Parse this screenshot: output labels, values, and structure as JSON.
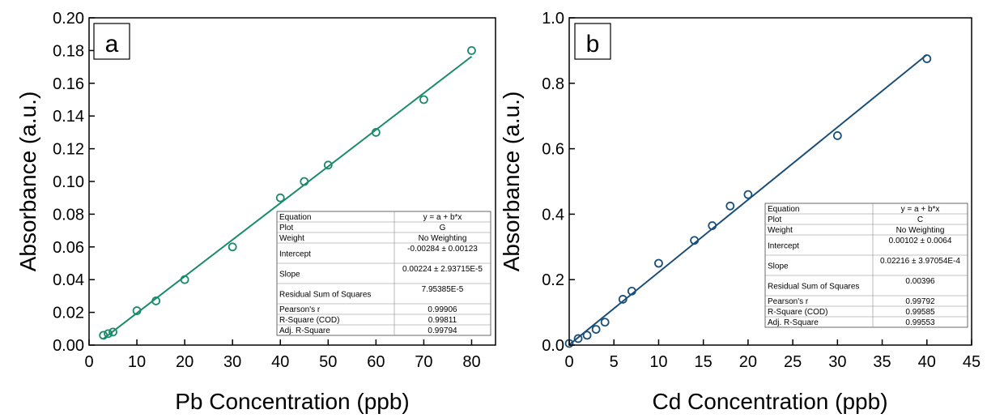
{
  "chart_data": [
    {
      "type": "scatter",
      "panel_label": "a",
      "xlabel": "Pb Concentration (ppb)",
      "ylabel": "Absorbance (a.u.)",
      "xlim": [
        0,
        85
      ],
      "ylim": [
        0,
        0.2
      ],
      "xticks": [
        0,
        10,
        20,
        30,
        40,
        50,
        60,
        70,
        80
      ],
      "yticks": [
        0.0,
        0.02,
        0.04,
        0.06,
        0.08,
        0.1,
        0.12,
        0.14,
        0.16,
        0.18,
        0.2
      ],
      "xtick_labels": [
        "0",
        "10",
        "20",
        "30",
        "40",
        "50",
        "60",
        "70",
        "80"
      ],
      "ytick_labels": [
        "0.00",
        "0.02",
        "0.04",
        "0.06",
        "0.08",
        "0.10",
        "0.12",
        "0.14",
        "0.16",
        "0.18",
        "0.20"
      ],
      "color": "#1a8a6c",
      "points": [
        {
          "x": 3,
          "y": 0.006
        },
        {
          "x": 4,
          "y": 0.007
        },
        {
          "x": 5,
          "y": 0.008
        },
        {
          "x": 10,
          "y": 0.021
        },
        {
          "x": 14,
          "y": 0.027
        },
        {
          "x": 20,
          "y": 0.04
        },
        {
          "x": 30,
          "y": 0.06
        },
        {
          "x": 40,
          "y": 0.09
        },
        {
          "x": 45,
          "y": 0.1
        },
        {
          "x": 50,
          "y": 0.11
        },
        {
          "x": 60,
          "y": 0.13
        },
        {
          "x": 70,
          "y": 0.15
        },
        {
          "x": 80,
          "y": 0.18
        }
      ],
      "fit": {
        "intercept": -0.00284,
        "slope": 0.00224,
        "x_range": [
          3,
          80
        ]
      },
      "grid": false,
      "stats_table": [
        {
          "label": "Equation",
          "value": "y = a + b*x"
        },
        {
          "label": "Plot",
          "value": "G"
        },
        {
          "label": "Weight",
          "value": "No Weighting"
        },
        {
          "label": "Intercept",
          "value": "-0.00284 ± 0.00123"
        },
        {
          "label": "Slope",
          "value": "0.00224 ± 2.93715E-5"
        },
        {
          "label": "Residual Sum of Squares",
          "value": "7.95385E-5"
        },
        {
          "label": "Pearson's r",
          "value": "0.99906"
        },
        {
          "label": "R-Square (COD)",
          "value": "0.99811"
        },
        {
          "label": "Adj. R-Square",
          "value": "0.99794"
        }
      ]
    },
    {
      "type": "scatter",
      "panel_label": "b",
      "xlabel": "Cd Concentration (ppb)",
      "ylabel": "Absorbance (a.u.)",
      "xlim": [
        0,
        45
      ],
      "ylim": [
        0,
        1.0
      ],
      "xticks": [
        0,
        5,
        10,
        15,
        20,
        25,
        30,
        35,
        40,
        45
      ],
      "yticks": [
        0.0,
        0.2,
        0.4,
        0.6,
        0.8,
        1.0
      ],
      "xtick_labels": [
        "0",
        "5",
        "10",
        "15",
        "20",
        "25",
        "30",
        "35",
        "40",
        "45"
      ],
      "ytick_labels": [
        "0.0",
        "0.2",
        "0.4",
        "0.6",
        "0.8",
        "1.0"
      ],
      "color": "#1c4f78",
      "points": [
        {
          "x": 0,
          "y": 0.005
        },
        {
          "x": 1,
          "y": 0.02
        },
        {
          "x": 2,
          "y": 0.03
        },
        {
          "x": 3,
          "y": 0.048
        },
        {
          "x": 4,
          "y": 0.07
        },
        {
          "x": 6,
          "y": 0.14
        },
        {
          "x": 7,
          "y": 0.165
        },
        {
          "x": 10,
          "y": 0.25
        },
        {
          "x": 14,
          "y": 0.32
        },
        {
          "x": 16,
          "y": 0.365
        },
        {
          "x": 18,
          "y": 0.425
        },
        {
          "x": 20,
          "y": 0.46
        },
        {
          "x": 30,
          "y": 0.64
        },
        {
          "x": 40,
          "y": 0.875
        }
      ],
      "fit": {
        "intercept": 0.00102,
        "slope": 0.02216,
        "x_range": [
          0,
          40
        ]
      },
      "grid": false,
      "stats_table": [
        {
          "label": "Equation",
          "value": "y = a + b*x"
        },
        {
          "label": "Plot",
          "value": "C"
        },
        {
          "label": "Weight",
          "value": "No Weighting"
        },
        {
          "label": "Intercept",
          "value": "0.00102 ± 0.0064"
        },
        {
          "label": "Slope",
          "value": "0.02216 ± 3.97054E-4"
        },
        {
          "label": "Residual Sum of Squares",
          "value": "0.00396"
        },
        {
          "label": "Pearson's r",
          "value": "0.99792"
        },
        {
          "label": "R-Square (COD)",
          "value": "0.99585"
        },
        {
          "label": "Adj. R-Square",
          "value": "0.99553"
        }
      ]
    }
  ]
}
